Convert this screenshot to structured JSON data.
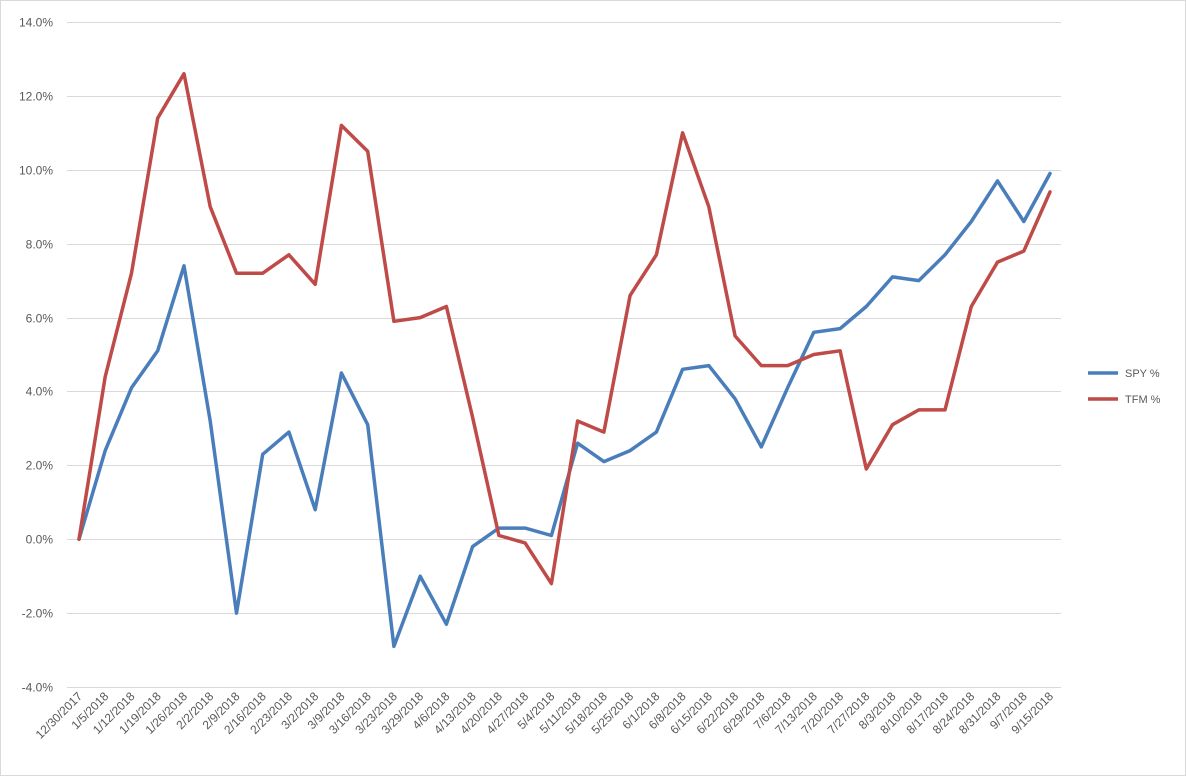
{
  "chart_data": {
    "type": "line",
    "title": "",
    "xlabel": "",
    "ylabel": "",
    "ylim": [
      -0.04,
      0.14
    ],
    "yticks": [
      -0.04,
      -0.02,
      0.0,
      0.02,
      0.04,
      0.06,
      0.08,
      0.1,
      0.12,
      0.14
    ],
    "ytick_labels": [
      "-4.0%",
      "-2.0%",
      "0.0%",
      "2.0%",
      "4.0%",
      "6.0%",
      "8.0%",
      "10.0%",
      "12.0%",
      "14.0%"
    ],
    "grid": true,
    "legend_position": "right",
    "categories": [
      "12/30/2017",
      "1/5/2018",
      "1/12/2018",
      "1/19/2018",
      "1/26/2018",
      "2/2/2018",
      "2/9/2018",
      "2/16/2018",
      "2/23/2018",
      "3/2/2018",
      "3/9/2018",
      "3/16/2018",
      "3/23/2018",
      "3/29/2018",
      "4/6/2018",
      "4/13/2018",
      "4/20/2018",
      "4/27/2018",
      "5/4/2018",
      "5/11/2018",
      "5/18/2018",
      "5/25/2018",
      "6/1/2018",
      "6/8/2018",
      "6/15/2018",
      "6/22/2018",
      "6/29/2018",
      "7/6/2018",
      "7/13/2018",
      "7/20/2018",
      "7/27/2018",
      "8/3/2018",
      "8/10/2018",
      "8/17/2018",
      "8/24/2018",
      "8/31/2018",
      "9/7/2018",
      "9/15/2018"
    ],
    "series": [
      {
        "name": "SPY %",
        "color": "#4a7ebb",
        "values": [
          0.0,
          0.024,
          0.041,
          0.051,
          0.074,
          0.032,
          -0.02,
          0.023,
          0.029,
          0.008,
          0.045,
          0.031,
          -0.029,
          -0.01,
          -0.023,
          -0.002,
          0.003,
          0.003,
          0.001,
          0.026,
          0.021,
          0.024,
          0.029,
          0.046,
          0.047,
          0.038,
          0.025,
          0.041,
          0.056,
          0.057,
          0.063,
          0.071,
          0.07,
          0.077,
          0.086,
          0.097,
          0.086,
          0.099
        ]
      },
      {
        "name": "TFM %",
        "color": "#be4b48",
        "values": [
          0.0,
          0.044,
          0.072,
          0.114,
          0.126,
          0.09,
          0.072,
          0.072,
          0.077,
          0.069,
          0.112,
          0.105,
          0.059,
          0.06,
          0.063,
          0.033,
          0.001,
          -0.001,
          -0.012,
          0.032,
          0.029,
          0.066,
          0.077,
          0.11,
          0.09,
          0.055,
          0.047,
          0.047,
          0.05,
          0.051,
          0.019,
          0.031,
          0.035,
          0.035,
          0.063,
          0.075,
          0.078,
          0.094
        ]
      }
    ]
  }
}
